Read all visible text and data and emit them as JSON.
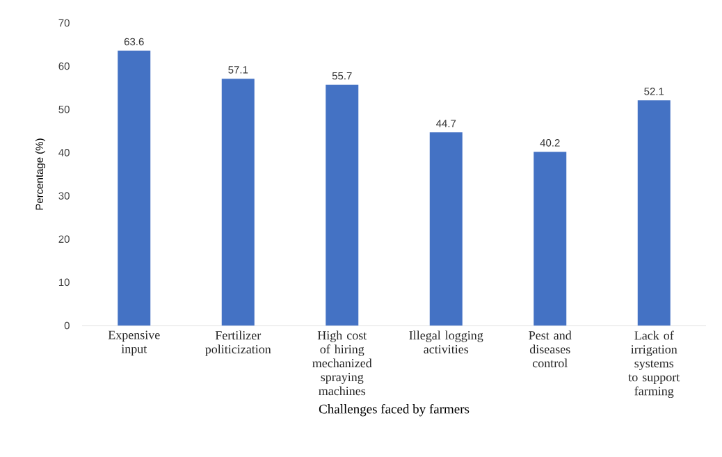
{
  "chart_data": {
    "type": "bar",
    "xlabel": "Challenges faced by farmers",
    "ylabel": "Percentage (%)",
    "categories": [
      "Expensive input",
      "Fertilizer politicization",
      "High cost of hiring mechanized spraying machines",
      "Illegal logging activities",
      "Pest and diseases control",
      "Lack of irrigation systems to support farming"
    ],
    "values": [
      63.6,
      57.1,
      55.7,
      44.7,
      40.2,
      52.1
    ],
    "color": "#4472c4",
    "ylim": [
      0,
      70
    ],
    "yticks": [
      0,
      10,
      20,
      30,
      40,
      50,
      60,
      70
    ],
    "data_labels": true
  }
}
